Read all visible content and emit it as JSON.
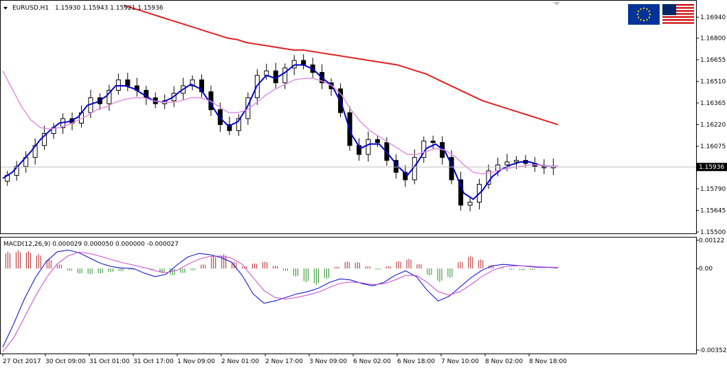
{
  "chart_data": [
    {
      "type": "candlestick",
      "title": "EURUSD,H1",
      "ohlc_readout": "1.15930 1.15943 1.15921 1.15936",
      "current_price": "1.15936",
      "ylim": [
        1.155,
        1.17
      ],
      "y_ticks": [
        "1.16940",
        "1.16800",
        "1.16655",
        "1.16510",
        "1.16365",
        "1.16220",
        "1.16075",
        "1.15790",
        "1.15645",
        "1.15500"
      ],
      "x_ticks": [
        "27 Oct 2017",
        "30 Oct 09:00",
        "31 Oct 01:00",
        "31 Oct 17:00",
        "1 Nov 09:00",
        "2 Nov 01:00",
        "2 Nov 17:00",
        "3 Nov 09:00",
        "6 Nov 02:00",
        "6 Nov 18:00",
        "7 Nov 10:00",
        "8 Nov 02:00",
        "8 Nov 18:00"
      ],
      "close_series": [
        1.1588,
        1.1594,
        1.16,
        1.1608,
        1.1616,
        1.162,
        1.1626,
        1.1623,
        1.163,
        1.164,
        1.1636,
        1.1645,
        1.1652,
        1.1648,
        1.1645,
        1.164,
        1.1636,
        1.1638,
        1.1643,
        1.1648,
        1.1652,
        1.1644,
        1.1632,
        1.1622,
        1.1618,
        1.1626,
        1.164,
        1.1655,
        1.1658,
        1.165,
        1.166,
        1.1665,
        1.1662,
        1.1657,
        1.165,
        1.1646,
        1.163,
        1.1608,
        1.1602,
        1.1612,
        1.161,
        1.1598,
        1.159,
        1.1585,
        1.16,
        1.1611,
        1.161,
        1.16,
        1.1585,
        1.1568,
        1.157,
        1.1582,
        1.1591,
        1.1595,
        1.1597,
        1.1598,
        1.1596,
        1.1594,
        1.1593,
        1.1594
      ],
      "series": [
        {
          "name": "",
          "color": "#0000cc",
          "values": [
            1.1586,
            1.159,
            1.1597,
            1.1604,
            1.1612,
            1.1618,
            1.1623,
            1.1624,
            1.1627,
            1.1635,
            1.1637,
            1.1641,
            1.1648,
            1.1648,
            1.1646,
            1.1642,
            1.1638,
            1.1637,
            1.164,
            1.1645,
            1.1649,
            1.1646,
            1.1637,
            1.1627,
            1.1621,
            1.1624,
            1.1634,
            1.1648,
            1.1655,
            1.1653,
            1.1657,
            1.1662,
            1.1662,
            1.1659,
            1.1653,
            1.1648,
            1.1636,
            1.1616,
            1.1606,
            1.1609,
            1.1609,
            1.1602,
            1.1594,
            1.1588,
            1.1596,
            1.1606,
            1.1609,
            1.1604,
            1.1591,
            1.1576,
            1.1572,
            1.1578,
            1.1587,
            1.1592,
            1.1595,
            1.1597,
            1.1597,
            1.1595,
            1.1594,
            1.1594
          ]
        },
        {
          "name": "",
          "color": "#e28fe2",
          "values": [
            1.1658,
            1.1646,
            1.1634,
            1.1625,
            1.162,
            1.1619,
            1.162,
            1.1622,
            1.1625,
            1.1628,
            1.1632,
            1.1634,
            1.1637,
            1.1639,
            1.164,
            1.164,
            1.1638,
            1.1637,
            1.1637,
            1.1638,
            1.164,
            1.164,
            1.1638,
            1.1634,
            1.163,
            1.163,
            1.1632,
            1.1637,
            1.1642,
            1.1646,
            1.1649,
            1.1652,
            1.1653,
            1.1653,
            1.1651,
            1.1648,
            1.1642,
            1.1632,
            1.1624,
            1.1618,
            1.1614,
            1.161,
            1.1606,
            1.1602,
            1.1602,
            1.1604,
            1.1606,
            1.1605,
            1.1601,
            1.1595,
            1.159,
            1.1589,
            1.159,
            1.1592,
            1.1593,
            1.1594,
            1.1595,
            1.1595,
            1.1594,
            1.1594
          ]
        },
        {
          "name": "",
          "color": "#e02020",
          "values": [
            1.1702,
            1.17,
            1.1698,
            1.1696,
            1.1694,
            1.1692,
            1.169,
            1.1688,
            1.1686,
            1.1684,
            1.1682,
            1.168,
            1.1679,
            1.1677,
            1.1676,
            1.1675,
            1.1674,
            1.1673,
            1.1672,
            1.1672,
            1.1671,
            1.167,
            1.1669,
            1.1668,
            1.1667,
            1.1666,
            1.1665,
            1.1664,
            1.1663,
            1.1662,
            1.166,
            1.1658,
            1.1656,
            1.1653,
            1.165,
            1.1647,
            1.1644,
            1.1641,
            1.1638,
            1.1636,
            1.1634,
            1.1632,
            1.163,
            1.1628,
            1.1626,
            1.1624,
            1.1622
          ]
        }
      ]
    },
    {
      "type": "bar",
      "title": "MACD(12,26,9) 0.000029 0.000050 0.000000 -0.000027",
      "ylim": [
        -0.003524,
        0.00122
      ],
      "y_ticks": [
        "0.00122",
        "0.00",
        "-0.003524"
      ],
      "histogram": [
        0.00072,
        0.00078,
        0.00076,
        0.00062,
        0.0004,
        0.00018,
        -0.0001,
        -0.00022,
        -0.00025,
        -0.00022,
        -0.00016,
        -0.00012,
        -6e-05,
        2e-05,
        -4e-05,
        -0.0002,
        -0.0003,
        -0.0002,
        -8e-05,
        0.00018,
        0.00055,
        0.00062,
        0.0003,
        0.0001,
        0.00022,
        0.0003,
        0.00012,
        -0.0001,
        -0.00035,
        -0.0006,
        -0.0007,
        -0.00045,
        8e-05,
        0.0003,
        0.00028,
        0.0001,
        -5e-05,
        0.0001,
        0.00032,
        0.00042,
        0.0002,
        -0.0003,
        -0.00058,
        -0.0004,
        0.0003,
        0.00055,
        0.0004,
        0.00015,
        4e-05,
        -5e-05,
        -8e-05,
        -6e-05,
        -2e-05,
        0.0
      ],
      "series": [
        {
          "name": "",
          "color": "#0000cc",
          "values": [
            -0.0034,
            -0.0024,
            -0.0013,
            -0.0004,
            0.0003,
            0.00072,
            0.0008,
            0.00068,
            0.00045,
            0.00022,
            8e-05,
            2e-05,
            0.0,
            -0.0002,
            -0.00035,
            -0.00025,
            0.00015,
            0.0005,
            0.00065,
            0.0006,
            0.00048,
            0.00028,
            -0.0003,
            -0.0011,
            -0.0015,
            -0.0014,
            -0.00125,
            -0.0011,
            -0.001,
            -0.00085,
            -0.0006,
            -0.00045,
            -0.0005,
            -0.00065,
            -0.00075,
            -0.0006,
            -0.0003,
            -0.0001,
            -0.00035,
            -0.00095,
            -0.0014,
            -0.0012,
            -0.0008,
            -0.0004,
            -8e-05,
            0.00012,
            0.00018,
            0.00014,
            0.0001,
            6e-05,
            5e-05,
            3e-05
          ]
        },
        {
          "name": "",
          "color": "#cc44cc",
          "values": [
            -0.0036,
            -0.003,
            -0.0021,
            -0.0012,
            -0.0004,
            0.0002,
            0.00055,
            0.0007,
            0.00065,
            0.00052,
            0.00038,
            0.00025,
            0.00015,
            4e-05,
            -0.0001,
            -0.00018,
            -8e-05,
            0.00018,
            0.0004,
            0.00052,
            0.00054,
            0.00045,
            0.00018,
            -0.0004,
            -0.00095,
            -0.00125,
            -0.00132,
            -0.00125,
            -0.00115,
            -0.00102,
            -0.00082,
            -0.00064,
            -0.00058,
            -0.00062,
            -0.0007,
            -0.00066,
            -0.0005,
            -0.0003,
            -0.0003,
            -0.0006,
            -0.001,
            -0.00115,
            -0.001,
            -0.0007,
            -0.00035,
            -8e-05,
            8e-05,
            0.00012,
            0.00011,
            8e-05,
            6e-05,
            5e-05
          ]
        }
      ]
    }
  ]
}
